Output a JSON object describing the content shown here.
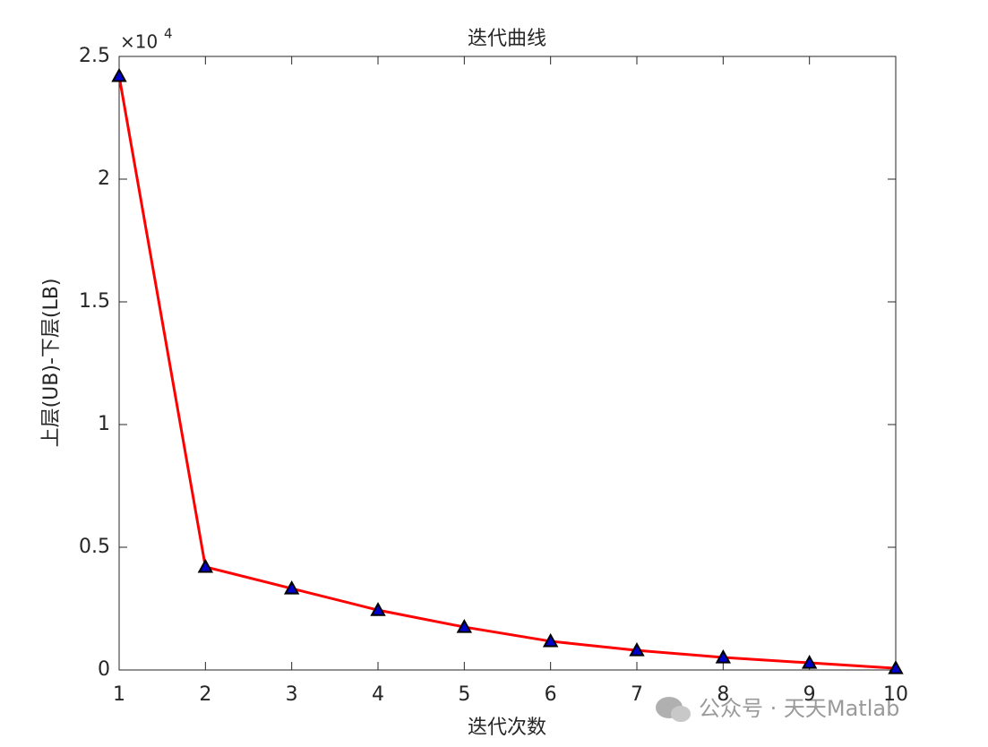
{
  "chart_data": {
    "type": "line",
    "title": "迭代曲线",
    "x_label": "迭代次数",
    "y_label": "上层(UB)-下层(LB)",
    "y_scale_base": "×10",
    "y_scale_power": "4",
    "x": [
      1,
      2,
      3,
      4,
      5,
      6,
      7,
      8,
      9,
      10
    ],
    "values": [
      24200,
      4200,
      3320,
      2440,
      1750,
      1170,
      800,
      510,
      290,
      70
    ],
    "color": "#ff0000",
    "marker_color": "#0000cc",
    "xlim": [
      1,
      10
    ],
    "xticks": [
      1,
      2,
      3,
      4,
      5,
      6,
      7,
      8,
      9,
      10
    ],
    "ylim": [
      0,
      25000
    ],
    "yticks": [
      0,
      {
        "value": 5000,
        "label": "0.5"
      },
      {
        "value": 10000,
        "label": "1"
      },
      {
        "value": 15000,
        "label": "1.5"
      },
      {
        "value": 20000,
        "label": "2"
      },
      {
        "value": 25000,
        "label": "2.5"
      }
    ],
    "grid": false,
    "watermark": "公众号 · 天天Matlab"
  }
}
